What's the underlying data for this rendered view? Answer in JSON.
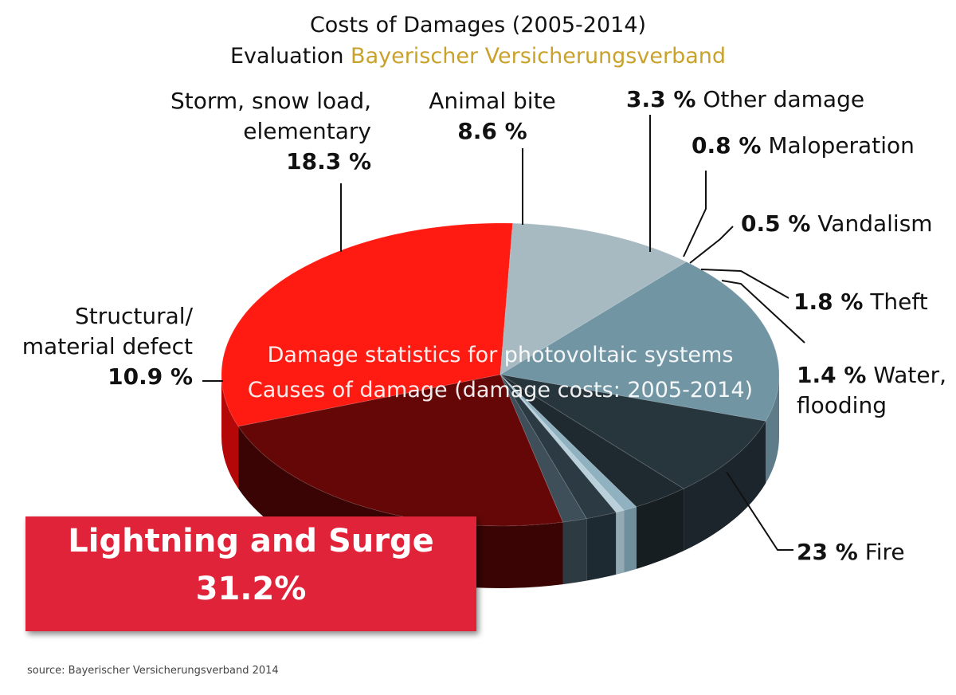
{
  "chart_data": {
    "type": "pie",
    "title": "Costs of Damages (2005-2014)",
    "subtitle_prefix": "Evaluation",
    "subtitle_highlight": "Bayerischer Versicherungsverband",
    "overlay_text": [
      "Damage statistics for photovoltaic systems",
      "Causes of damage (damage costs: 2005-2014)"
    ],
    "slices": [
      {
        "label": "Lightning and Surge",
        "value": 31.2,
        "value_text": "31.2%",
        "color": "#ff1a12",
        "side_color": "#b40808"
      },
      {
        "label": "Structural/ material defect",
        "label_lines": [
          "Structural/",
          "material defect"
        ],
        "value": 10.9,
        "value_text": "10.9 %",
        "color": "#a7bac2",
        "side_color": "#8fa3ab"
      },
      {
        "label": "Storm, snow load, elementary",
        "label_lines": [
          "Storm, snow load,",
          "elementary"
        ],
        "value": 18.3,
        "value_text": "18.3 %",
        "color": "#7295a4",
        "side_color": "#5d7b88"
      },
      {
        "label": "Animal bite",
        "label_lines": [
          "Animal bite"
        ],
        "value": 8.6,
        "value_text": "8.6 %",
        "color": "#27353d",
        "side_color": "#1b252b"
      },
      {
        "label": "Other damage",
        "value": 3.3,
        "value_text": "3.3 %",
        "color": "#1f2a30",
        "side_color": "#161e22"
      },
      {
        "label": "Maloperation",
        "value": 0.8,
        "value_text": "0.8 %",
        "color": "#8fb1c0",
        "side_color": "#6f8f9d"
      },
      {
        "label": "Vandalism",
        "value": 0.5,
        "value_text": "0.5 %",
        "color": "#b9d0da",
        "side_color": "#93a9b3"
      },
      {
        "label": "Theft",
        "value": 1.8,
        "value_text": "1.8 %",
        "color": "#2b3a43",
        "side_color": "#1e2a31"
      },
      {
        "label": "Water, flooding",
        "label_lines": [
          "Water,",
          "flooding"
        ],
        "value": 1.4,
        "value_text": "1.4 %",
        "color": "#3e4f59",
        "side_color": "#2d3a42"
      },
      {
        "label": "Fire",
        "value": 23.0,
        "value_text": "23 %",
        "color": "#650707",
        "side_color": "#3a0404"
      }
    ]
  },
  "source_note": "source: Bayerischer Versicherungsverband 2014"
}
